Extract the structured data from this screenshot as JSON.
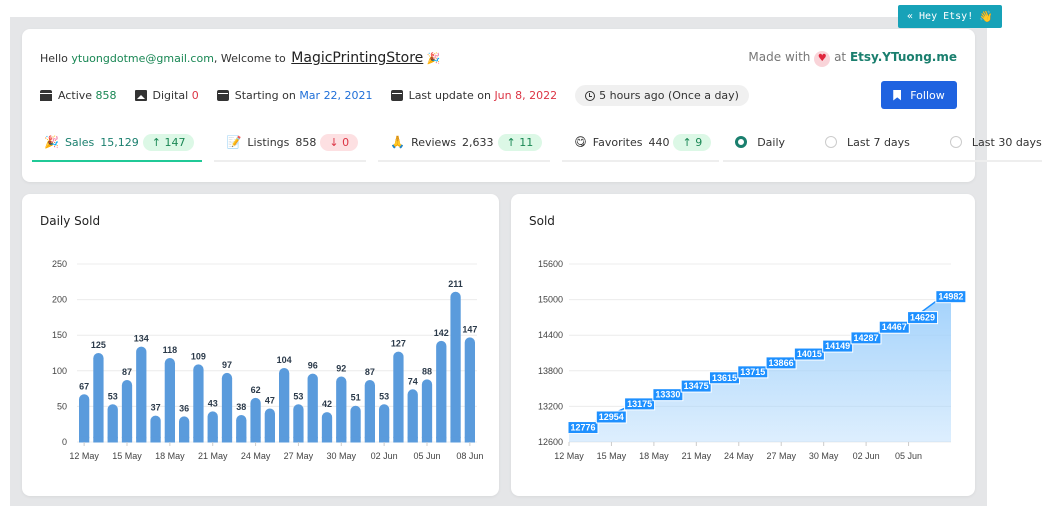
{
  "badge_button": {
    "label": "« Hey Etsy!",
    "icon": "waving-hand-icon",
    "emoji": "👋"
  },
  "header": {
    "hello": "Hello",
    "email": "ytuongdotme@gmail.com",
    "welcome": ", Welcome to",
    "store": "MagicPrintingStore",
    "store_emoji": "🎉",
    "made_with": "Made with",
    "heart": "♥",
    "at": "at",
    "site": "Etsy.YTuong.me"
  },
  "meta": {
    "active_label": "Active",
    "active_value": "858",
    "digital_label": "Digital",
    "digital_value": "0",
    "starting_label": "Starting on",
    "starting_value": "Mar 22, 2021",
    "update_label": "Last update on",
    "update_value": "Jun 8, 2022",
    "ago": "5 hours ago (Once a day)"
  },
  "follow_label": "Follow",
  "tabs": [
    {
      "emoji": "🎉",
      "label": "Sales",
      "count": "15,129",
      "delta": "↑ 147",
      "dir": "up"
    },
    {
      "emoji": "📝",
      "label": "Listings",
      "count": "858",
      "delta": "↓ 0",
      "dir": "down"
    },
    {
      "emoji": "🙏",
      "label": "Reviews",
      "count": "2,633",
      "delta": "↑ 11",
      "dir": "up"
    },
    {
      "emoji": "😋",
      "label": "Favorites",
      "count": "440",
      "delta": "↑ 9",
      "dir": "up"
    }
  ],
  "periods": [
    {
      "label": "Daily",
      "selected": true
    },
    {
      "label": "Last 7 days",
      "selected": false
    },
    {
      "label": "Last 30 days",
      "selected": false
    }
  ],
  "colors": {
    "accent": "#1a7f6e",
    "bar": "#5a9bdc",
    "follow": "#1f63e0",
    "area": "#9fd0fb"
  },
  "chart_data": [
    {
      "type": "bar",
      "title": "Daily Sold",
      "x": [
        "12 May",
        "13 May",
        "14 May",
        "15 May",
        "16 May",
        "17 May",
        "18 May",
        "19 May",
        "20 May",
        "21 May",
        "22 May",
        "23 May",
        "24 May",
        "25 May",
        "26 May",
        "27 May",
        "28 May",
        "29 May",
        "30 May",
        "31 May",
        "01 Jun",
        "02 Jun",
        "03 Jun",
        "04 Jun",
        "05 Jun",
        "06 Jun",
        "07 Jun",
        "08 Jun"
      ],
      "values": [
        67,
        125,
        53,
        87,
        134,
        37,
        118,
        36,
        109,
        43,
        97,
        38,
        62,
        47,
        104,
        53,
        96,
        42,
        92,
        51,
        87,
        53,
        127,
        74,
        88,
        142,
        211,
        147
      ],
      "xticks": [
        "12 May",
        "15 May",
        "18 May",
        "21 May",
        "24 May",
        "27 May",
        "30 May",
        "02 Jun",
        "05 Jun",
        "08 Jun"
      ],
      "yticks": [
        0,
        50,
        100,
        150,
        200,
        250
      ],
      "ylim": [
        0,
        250
      ],
      "grid": true
    },
    {
      "type": "area",
      "title": "Sold",
      "x": [
        "12 May",
        "14 May",
        "16 May",
        "18 May",
        "20 May",
        "22 May",
        "24 May",
        "26 May",
        "28 May",
        "30 May",
        "01 Jun",
        "03 Jun",
        "05 Jun",
        "07 Jun"
      ],
      "values": [
        12776,
        12954,
        13175,
        13330,
        13475,
        13615,
        13715,
        13866,
        14015,
        14149,
        14287,
        14467,
        14629,
        14982
      ],
      "xticks": [
        "12 May",
        "15 May",
        "18 May",
        "21 May",
        "24 May",
        "27 May",
        "30 May",
        "02 Jun",
        "05 Jun"
      ],
      "yticks": [
        12600,
        13200,
        13800,
        14400,
        15000,
        15600
      ],
      "ylim": [
        12600,
        15600
      ],
      "grid": true
    }
  ]
}
